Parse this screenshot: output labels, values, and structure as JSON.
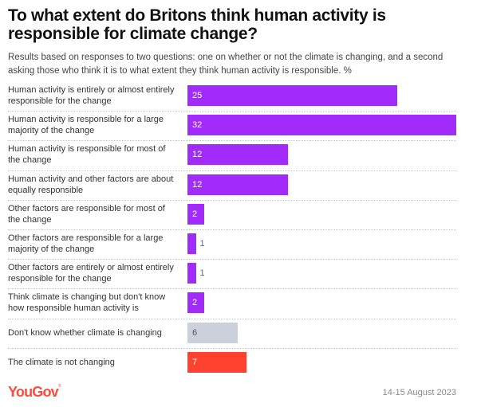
{
  "header": {
    "title": "To what extent do Britons think human activity is responsible for climate change?",
    "subtitle": "Results based on responses to two questions: one on whether or not the climate is changing, and a second asking those who think it is to what extent they think human activity is responsible. %"
  },
  "footer": {
    "brand": "YouGov",
    "date": "14-15 August 2023"
  },
  "colors": {
    "purple": "#A22BFC",
    "gray": "#CBD0DA",
    "red": "#FF4230"
  },
  "chart_data": {
    "type": "bar",
    "orientation": "horizontal",
    "title": "To what extent do Britons think human activity is responsible for climate change?",
    "subtitle": "Results based on responses to two questions: one on whether or not the climate is changing, and a second asking those who think it is to what extent they think human activity is responsible. %",
    "xlabel": "",
    "ylabel": "",
    "unit": "%",
    "xlim": [
      0,
      32
    ],
    "grid": false,
    "legend": "none",
    "categories": [
      "Human activity is entirely or almost entirely responsible for the change",
      "Human activity is responsible for a large majority of the change",
      "Human activity is responsible for most of the change",
      "Human activity and other factors are about equally responsible",
      "Other factors are responsible for most of the change",
      "Other factors are responsible for a large majority of the change",
      "Other factors are entirely or almost entirely responsible for the change",
      "Think climate is changing but don't know how responsible human activity is",
      "Don't know whether climate is changing",
      "The climate is not changing"
    ],
    "values": [
      25,
      32,
      12,
      12,
      2,
      1,
      1,
      2,
      6,
      7
    ],
    "bar_colors": [
      "purple",
      "purple",
      "purple",
      "purple",
      "purple",
      "purple",
      "purple",
      "purple",
      "gray",
      "red"
    ],
    "source_date": "14-15 August 2023"
  }
}
